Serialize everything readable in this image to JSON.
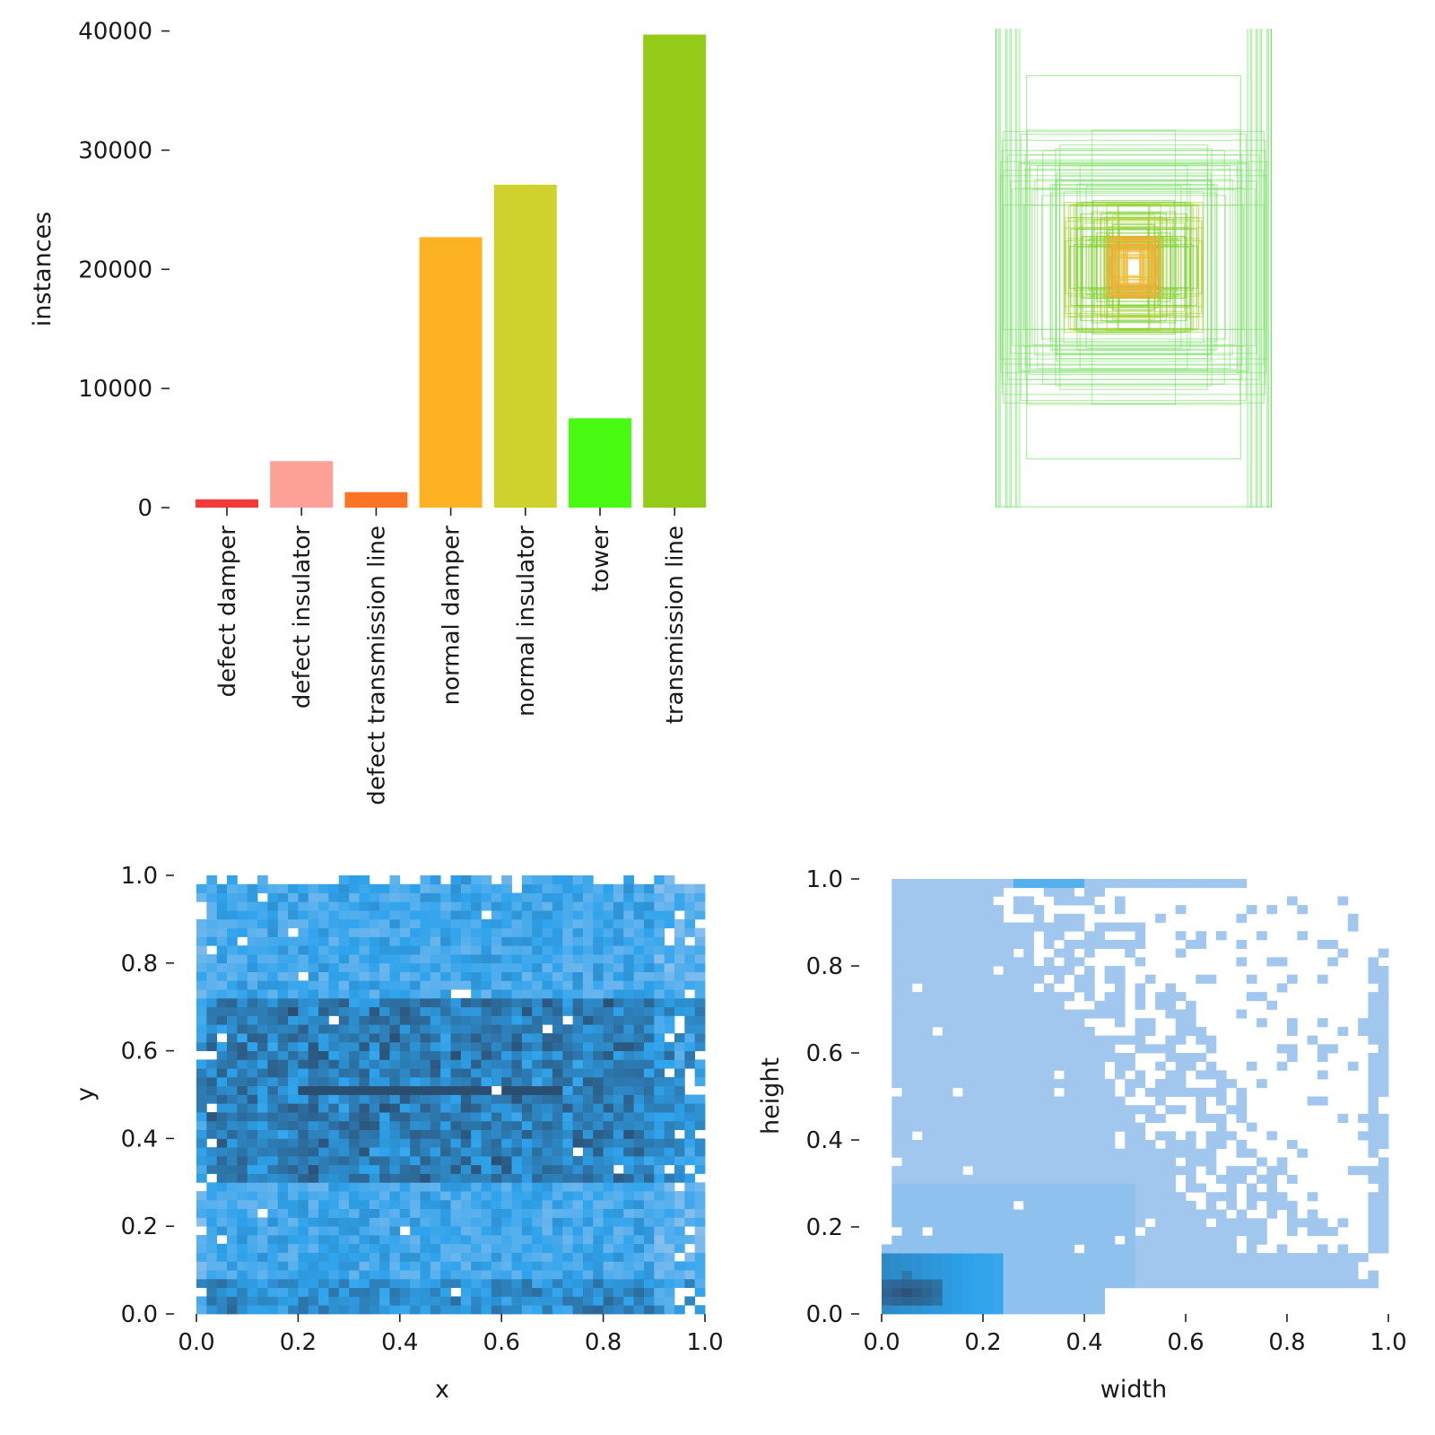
{
  "chart_data": [
    {
      "type": "bar",
      "panel": "top-left",
      "title": "",
      "xlabel": "",
      "ylabel": "instances",
      "ylim": [
        0,
        42000
      ],
      "yticks": [
        "0",
        "10000",
        "20000",
        "30000",
        "40000"
      ],
      "categories": [
        "defect damper",
        "defect insulator",
        "defect transmission line",
        "normal damper",
        "normal insulator",
        "tower",
        "transmission line"
      ],
      "values": [
        700,
        3900,
        1300,
        22700,
        27100,
        7500,
        39700
      ],
      "colors": [
        "#f23a3a",
        "#fda097",
        "#fb7423",
        "#fdb223",
        "#cfd22d",
        "#48f912",
        "#93cb18"
      ]
    },
    {
      "type": "box-overlay",
      "panel": "top-right",
      "title": "",
      "note": "bounding boxes of labels drawn centered, colored by class",
      "legend": "none"
    },
    {
      "type": "heatmap",
      "panel": "bottom-left",
      "xlabel": "x",
      "ylabel": "y",
      "xlim": [
        0,
        1
      ],
      "ylim": [
        0,
        1
      ],
      "xticks": [
        "0.0",
        "0.2",
        "0.4",
        "0.6",
        "0.8",
        "1.0"
      ],
      "yticks": [
        "0.0",
        "0.2",
        "0.4",
        "0.6",
        "0.8",
        "1.0"
      ],
      "bins": 50,
      "peak_row_y": 0.51,
      "dense_band": [
        0.3,
        0.72
      ],
      "colors": {
        "low": "#a7c8ee",
        "mid": "#2ea3ec",
        "high": "#2b4a6b"
      }
    },
    {
      "type": "heatmap",
      "panel": "bottom-right",
      "xlabel": "width",
      "ylabel": "height",
      "xlim": [
        0,
        1
      ],
      "ylim": [
        0,
        1
      ],
      "xticks": [
        "0.0",
        "0.2",
        "0.4",
        "0.6",
        "0.8",
        "1.0"
      ],
      "yticks": [
        "0.0",
        "0.2",
        "0.4",
        "0.6",
        "0.8",
        "1.0"
      ],
      "bins": 50,
      "peak": [
        0.05,
        0.05
      ],
      "colors": {
        "low": "#aecbee",
        "mid": "#2ea3ec",
        "high": "#2b4a6b"
      }
    }
  ]
}
